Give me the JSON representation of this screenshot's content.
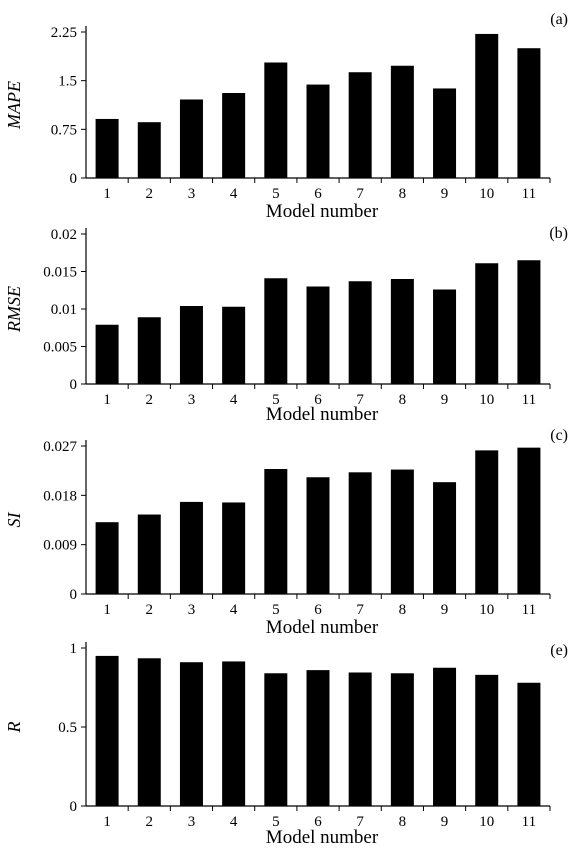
{
  "chart_data": [
    {
      "type": "bar",
      "panel_label": "(a)",
      "ylabel": "MAPE",
      "xlabel": "Model number",
      "categories": [
        "1",
        "2",
        "3",
        "4",
        "5",
        "6",
        "7",
        "8",
        "9",
        "10",
        "11"
      ],
      "values": [
        0.91,
        0.86,
        1.21,
        1.31,
        1.78,
        1.44,
        1.63,
        1.73,
        1.38,
        2.22,
        2.0
      ],
      "ylim": [
        0,
        2.25
      ],
      "yticks": [
        "0",
        "0.75",
        "1.5",
        "2.25"
      ],
      "ytick_values": [
        0,
        0.75,
        1.5,
        2.25
      ],
      "grid": false
    },
    {
      "type": "bar",
      "panel_label": "(b)",
      "ylabel": "RMSE",
      "xlabel": "Model number",
      "categories": [
        "1",
        "2",
        "3",
        "4",
        "5",
        "6",
        "7",
        "8",
        "9",
        "10",
        "11"
      ],
      "values": [
        0.0079,
        0.0089,
        0.0104,
        0.0103,
        0.0141,
        0.013,
        0.0137,
        0.014,
        0.0126,
        0.0161,
        0.0165
      ],
      "ylim": [
        0,
        0.02
      ],
      "yticks": [
        "0",
        "0.005",
        "0.01",
        "0.015",
        "0.02"
      ],
      "ytick_values": [
        0,
        0.005,
        0.01,
        0.015,
        0.02
      ],
      "grid": false
    },
    {
      "type": "bar",
      "panel_label": "(c)",
      "ylabel": "SI",
      "xlabel": "Model number",
      "categories": [
        "1",
        "2",
        "3",
        "4",
        "5",
        "6",
        "7",
        "8",
        "9",
        "10",
        "11"
      ],
      "values": [
        0.0131,
        0.0145,
        0.0168,
        0.0167,
        0.0228,
        0.0213,
        0.0222,
        0.0227,
        0.0204,
        0.0262,
        0.0267
      ],
      "ylim": [
        0,
        0.027
      ],
      "yticks": [
        "0",
        "0.009",
        "0.018",
        "0.027"
      ],
      "ytick_values": [
        0,
        0.009,
        0.018,
        0.027
      ],
      "grid": false
    },
    {
      "type": "bar",
      "panel_label": "(e)",
      "ylabel": "R",
      "xlabel": "Model number",
      "categories": [
        "1",
        "2",
        "3",
        "4",
        "5",
        "6",
        "7",
        "8",
        "9",
        "10",
        "11"
      ],
      "values": [
        0.95,
        0.935,
        0.91,
        0.915,
        0.84,
        0.86,
        0.845,
        0.84,
        0.875,
        0.83,
        0.78
      ],
      "ylim": [
        0,
        1
      ],
      "yticks": [
        "0",
        "0.5",
        "1"
      ],
      "ytick_values": [
        0,
        0.5,
        1
      ],
      "grid": false
    }
  ]
}
